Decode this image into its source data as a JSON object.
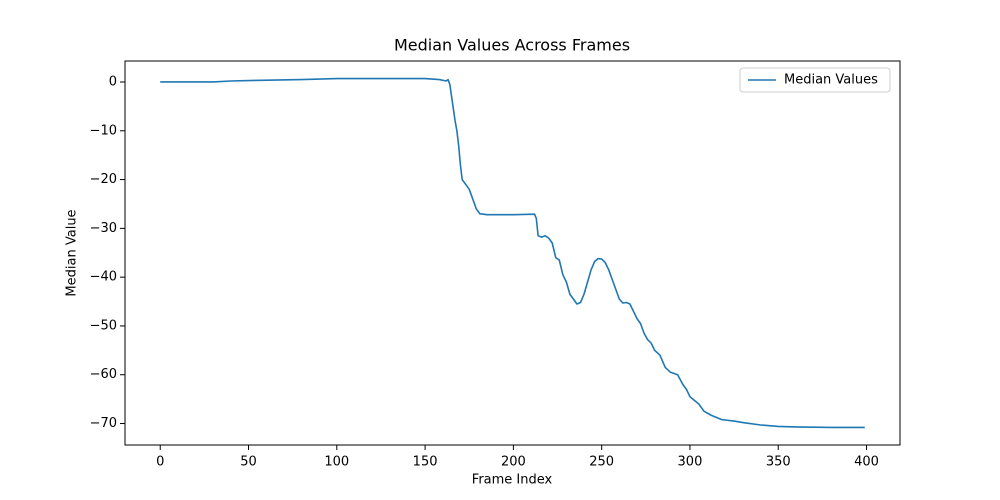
{
  "chart_data": {
    "type": "line",
    "title": "Median Values Across Frames",
    "x_label": "Frame Index",
    "y_label": "Median Value",
    "x": [
      0,
      30,
      40,
      50,
      80,
      100,
      150,
      158,
      162,
      163,
      164,
      165,
      167,
      168,
      169,
      170,
      171,
      173,
      175,
      177,
      179,
      181,
      185,
      200,
      212,
      213,
      214,
      216,
      218,
      220,
      222,
      224,
      226,
      228,
      230,
      232,
      234,
      236,
      238,
      240,
      242,
      244,
      246,
      248,
      250,
      252,
      254,
      256,
      258,
      260,
      262,
      264,
      266,
      268,
      270,
      272,
      274,
      276,
      278,
      280,
      283,
      286,
      289,
      293,
      296,
      298,
      300,
      305,
      308,
      312,
      318,
      325,
      330,
      340,
      350,
      360,
      380,
      399
    ],
    "series": [
      {
        "name": "Median Values",
        "color": "#1f77b4",
        "values": [
          0,
          0,
          0.2,
          0.3,
          0.5,
          0.7,
          0.7,
          0.5,
          0.2,
          0.5,
          -0.5,
          -3,
          -8,
          -10,
          -13,
          -17,
          -20,
          -21,
          -22,
          -24,
          -26,
          -27,
          -27.2,
          -27.2,
          -27.1,
          -28,
          -31.5,
          -31.8,
          -31.5,
          -32,
          -33,
          -36,
          -36.5,
          -39.5,
          -41,
          -43.5,
          -44.5,
          -45.5,
          -45.2,
          -43.5,
          -41,
          -38.5,
          -36.8,
          -36.2,
          -36.3,
          -37,
          -38.5,
          -40.5,
          -42.5,
          -44.5,
          -45.3,
          -45.2,
          -45.5,
          -47,
          -48.5,
          -49.5,
          -51.5,
          -52.8,
          -53.5,
          -55,
          -56,
          -58.5,
          -59.5,
          -60,
          -62,
          -63,
          -64.5,
          -66,
          -67.5,
          -68.3,
          -69.2,
          -69.5,
          -69.8,
          -70.3,
          -70.6,
          -70.7,
          -70.8,
          -70.8
        ]
      }
    ],
    "xlim": [
      -19.95,
      418.95
    ],
    "xticks": [
      0,
      50,
      100,
      150,
      200,
      250,
      300,
      350,
      400
    ],
    "ylim": [
      -74.4,
      4.3
    ],
    "yticks": [
      0,
      {
        "value": -10,
        "label": "−10"
      },
      {
        "value": -20,
        "label": "−20"
      },
      {
        "value": -30,
        "label": "−30"
      },
      {
        "value": -40,
        "label": "−40"
      },
      {
        "value": -50,
        "label": "−50"
      },
      {
        "value": -60,
        "label": "−60"
      },
      {
        "value": -70,
        "label": "−70"
      }
    ],
    "legend": "upper right",
    "grid": false
  }
}
